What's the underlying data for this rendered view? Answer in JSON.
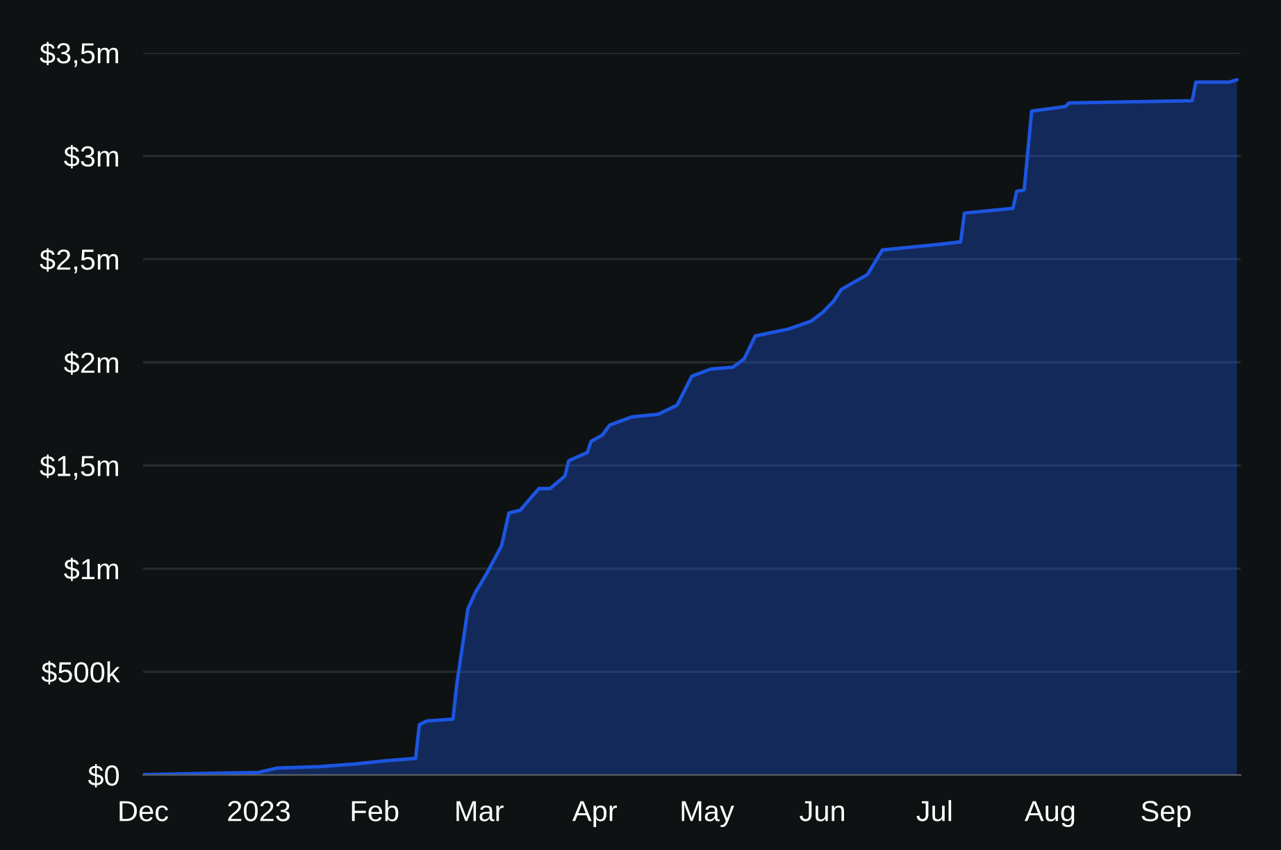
{
  "chart_data": {
    "type": "area",
    "x": [
      "2022-12-01",
      "2023-01-01",
      "2023-01-06",
      "2023-01-17",
      "2023-01-27",
      "2023-02-04",
      "2023-02-12",
      "2023-02-13",
      "2023-02-15",
      "2023-02-22",
      "2023-02-23",
      "2023-02-26",
      "2023-02-28",
      "2023-03-03",
      "2023-03-07",
      "2023-03-09",
      "2023-03-12",
      "2023-03-17",
      "2023-03-20",
      "2023-03-24",
      "2023-03-25",
      "2023-03-30",
      "2023-03-31",
      "2023-04-03",
      "2023-04-05",
      "2023-04-11",
      "2023-04-18",
      "2023-04-23",
      "2023-04-27",
      "2023-05-02",
      "2023-05-08",
      "2023-05-11",
      "2023-05-14",
      "2023-05-23",
      "2023-05-29",
      "2023-06-01",
      "2023-06-04",
      "2023-06-06",
      "2023-06-13",
      "2023-06-17",
      "2023-07-02",
      "2023-07-08",
      "2023-07-09",
      "2023-07-22",
      "2023-07-23",
      "2023-07-25",
      "2023-07-27",
      "2023-08-05",
      "2023-08-06",
      "2023-09-08",
      "2023-09-09",
      "2023-09-18",
      "2023-09-20"
    ],
    "series": [
      {
        "color": "#1d55e0",
        "values": [
          2000,
          13000,
          34000,
          40000,
          54000,
          69000,
          81000,
          244000,
          262000,
          271000,
          437000,
          805000,
          884000,
          976000,
          1110000,
          1270000,
          1283000,
          1388000,
          1388000,
          1449000,
          1523000,
          1563000,
          1617000,
          1647000,
          1696000,
          1736000,
          1748000,
          1792000,
          1933000,
          1967000,
          1976000,
          2017000,
          2128000,
          2162000,
          2200000,
          2241000,
          2297000,
          2353000,
          2425000,
          2544000,
          2571000,
          2584000,
          2723000,
          2746000,
          2829000,
          2835000,
          3217000,
          3239000,
          3257000,
          3268000,
          3358000,
          3358000,
          3369000
        ]
      }
    ],
    "xlim": [
      "2022-12-01",
      "2023-09-21"
    ],
    "xticks": [
      {
        "value": "2022-12-01",
        "label": "Dec"
      },
      {
        "value": "2023-01-01",
        "label": "2023"
      },
      {
        "value": "2023-02-01",
        "label": "Feb"
      },
      {
        "value": "2023-03-01",
        "label": "Mar"
      },
      {
        "value": "2023-04-01",
        "label": "Apr"
      },
      {
        "value": "2023-05-01",
        "label": "May"
      },
      {
        "value": "2023-06-01",
        "label": "Jun"
      },
      {
        "value": "2023-07-01",
        "label": "Jul"
      },
      {
        "value": "2023-08-01",
        "label": "Aug"
      },
      {
        "value": "2023-09-01",
        "label": "Sep"
      }
    ],
    "ylim": [
      0,
      3500000
    ],
    "yticks": [
      {
        "value": 0,
        "label": "$0"
      },
      {
        "value": 500000,
        "label": "$500k"
      },
      {
        "value": 1000000,
        "label": "$1m"
      },
      {
        "value": 1500000,
        "label": "$1,5m"
      },
      {
        "value": 2000000,
        "label": "$2m"
      },
      {
        "value": 2500000,
        "label": "$2,5m"
      },
      {
        "value": 3000000,
        "label": "$3m"
      },
      {
        "value": 3500000,
        "label": "$3,5m"
      }
    ],
    "grid": "y"
  }
}
